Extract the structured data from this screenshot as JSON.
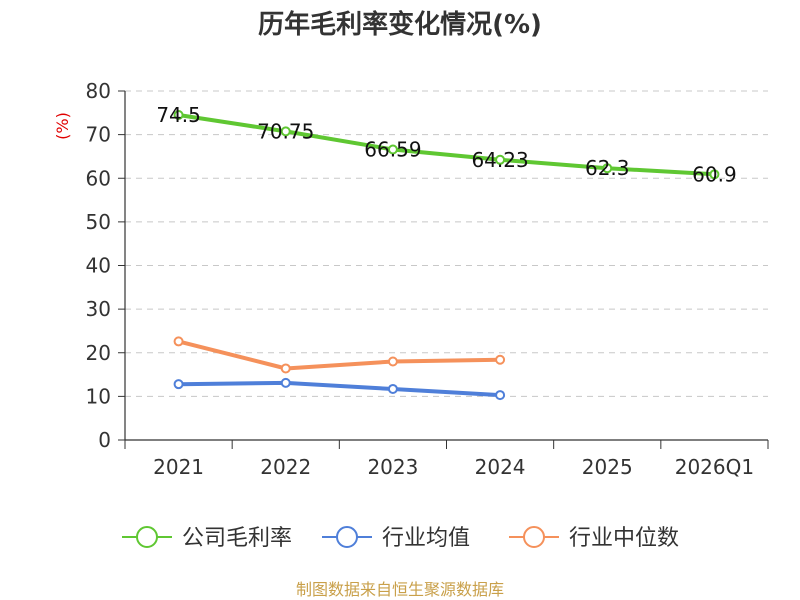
{
  "chart_data": {
    "type": "line",
    "title": "历年毛利率变化情况(%)",
    "ylabel": "(%)",
    "xlabel": "",
    "categories": [
      "2021",
      "2022",
      "2023",
      "2024",
      "2025",
      "2026Q1"
    ],
    "ylim": [
      0,
      80
    ],
    "yticks": [
      0,
      10,
      20,
      30,
      40,
      50,
      60,
      70,
      80
    ],
    "grid": true,
    "legend_position": "bottom",
    "series": [
      {
        "name": "公司毛利率",
        "color": "#5fc732",
        "values": [
          74.5,
          70.75,
          66.59,
          64.23,
          62.3,
          60.9
        ],
        "labels": [
          "74.5",
          "70.75",
          "66.59",
          "64.23",
          "62.3",
          "60.9"
        ]
      },
      {
        "name": "行业均值",
        "color": "#4f7fd9",
        "values": [
          12.8,
          13.1,
          11.7,
          10.3,
          null,
          null
        ]
      },
      {
        "name": "行业中位数",
        "color": "#f5915b",
        "values": [
          22.6,
          16.4,
          18.0,
          18.4,
          null,
          null
        ]
      }
    ]
  },
  "source": "制图数据来自恒生聚源数据库"
}
